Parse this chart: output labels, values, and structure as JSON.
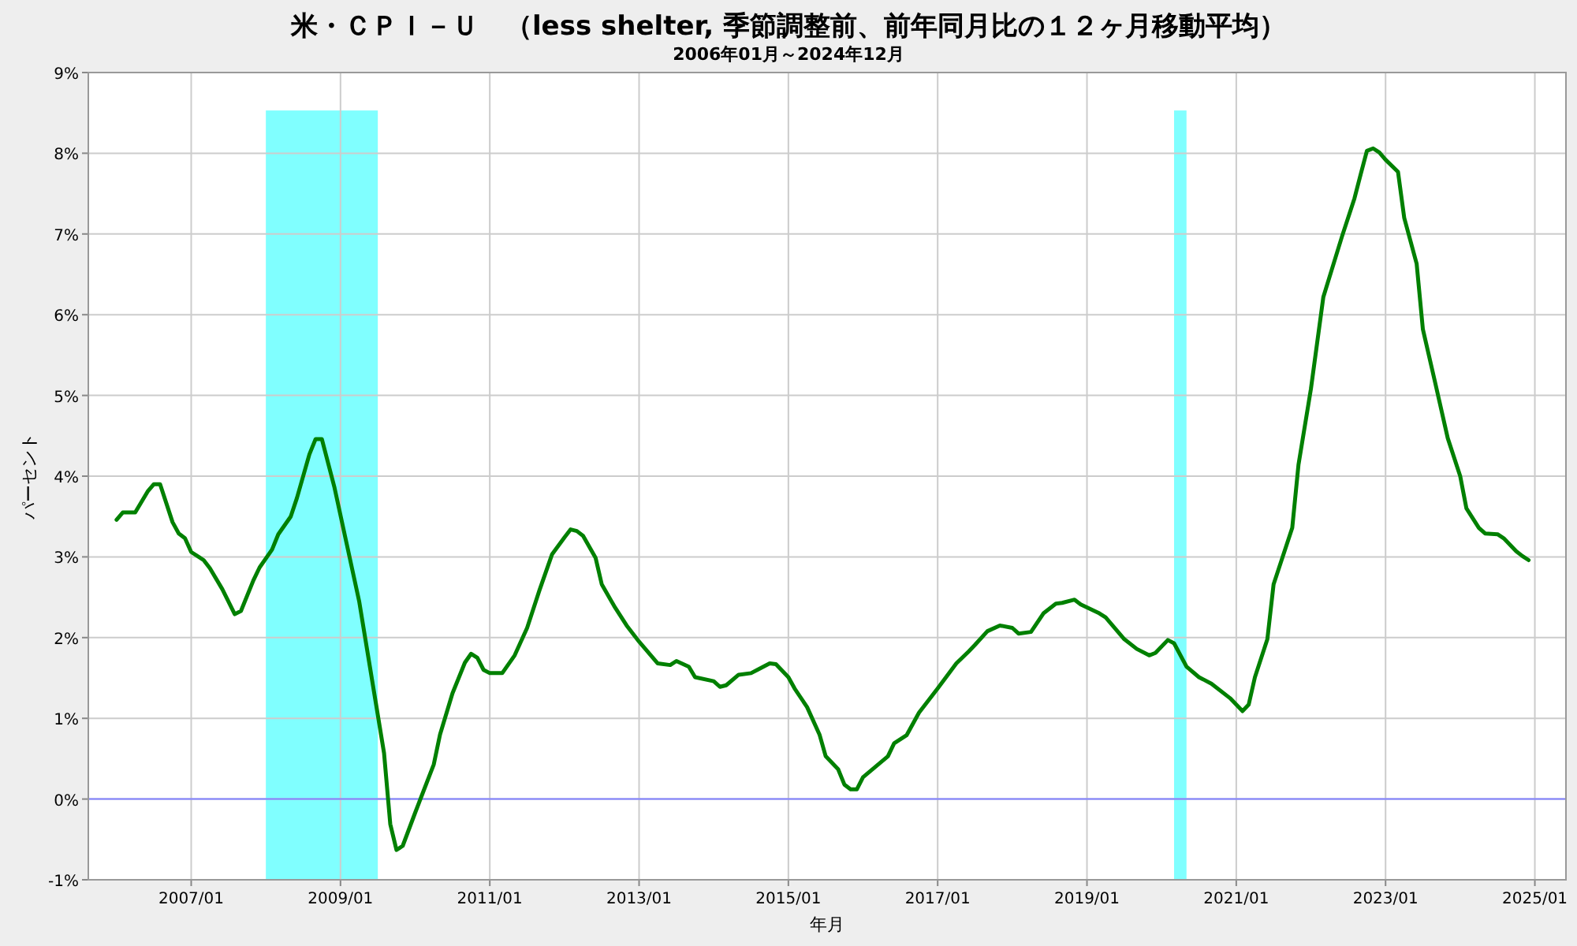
{
  "chart_data": {
    "type": "line",
    "title": "米・ＣＰＩ－Ｕ　（less shelter, 季節調整前、前年同月比の１２ヶ月移動平均）",
    "subtitle": "2006年01月～2024年12月",
    "xlabel": "年月",
    "ylabel": "パーセント",
    "xlim": [
      "2005-08-15",
      "2025-06"
    ],
    "xticks": [
      {
        "value": "2007-01",
        "label": "2007/01"
      },
      {
        "value": "2009-01",
        "label": "2009/01"
      },
      {
        "value": "2011-01",
        "label": "2011/01"
      },
      {
        "value": "2013-01",
        "label": "2013/01"
      },
      {
        "value": "2015-01",
        "label": "2015/01"
      },
      {
        "value": "2017-01",
        "label": "2017/01"
      },
      {
        "value": "2019-01",
        "label": "2019/01"
      },
      {
        "value": "2021-01",
        "label": "2021/01"
      },
      {
        "value": "2023-01",
        "label": "2023/01"
      },
      {
        "value": "2025-01",
        "label": "2025/01"
      }
    ],
    "ylim": [
      -1,
      9
    ],
    "yticks": [
      {
        "value": -1,
        "label": "-1%"
      },
      {
        "value": 0,
        "label": "0%"
      },
      {
        "value": 1,
        "label": "1%"
      },
      {
        "value": 2,
        "label": "2%"
      },
      {
        "value": 3,
        "label": "3%"
      },
      {
        "value": 4,
        "label": "4%"
      },
      {
        "value": 5,
        "label": "5%"
      },
      {
        "value": 6,
        "label": "6%"
      },
      {
        "value": 7,
        "label": "7%"
      },
      {
        "value": 8,
        "label": "8%"
      },
      {
        "value": 9,
        "label": "9%"
      }
    ],
    "grid": true,
    "line_style": "solid",
    "ref_lines": [
      {
        "axis": "y",
        "value": 0,
        "color": "#8080ff"
      }
    ],
    "bands": [
      {
        "axis": "x",
        "from": "2008-01",
        "to": "2009-07",
        "color": "#80ffff"
      },
      {
        "axis": "x",
        "from": "2020-03",
        "to": "2020-05",
        "color": "#80ffff"
      }
    ],
    "series": [
      {
        "color": "#008000",
        "x": [
          "2006-01",
          "2006-02",
          "2006-04",
          "2006-06",
          "2006-07",
          "2006-08",
          "2006-10",
          "2006-11",
          "2006-12",
          "2007-01",
          "2007-03",
          "2007-04",
          "2007-06",
          "2007-08",
          "2007-09",
          "2007-11",
          "2007-12",
          "2008-02",
          "2008-03",
          "2008-05",
          "2008-06",
          "2008-08",
          "2008-09",
          "2008-10",
          "2008-12",
          "2009-02",
          "2009-04",
          "2009-06",
          "2009-08",
          "2009-09",
          "2009-10",
          "2009-11",
          "2010-01",
          "2010-02",
          "2010-04",
          "2010-05",
          "2010-07",
          "2010-09",
          "2010-10",
          "2010-11",
          "2010-12",
          "2011-01",
          "2011-03",
          "2011-05",
          "2011-07",
          "2011-09",
          "2011-11",
          "2012-01",
          "2012-02",
          "2012-03",
          "2012-04",
          "2012-06",
          "2012-07",
          "2012-09",
          "2012-11",
          "2013-01",
          "2013-02",
          "2013-04",
          "2013-06",
          "2013-07",
          "2013-09",
          "2013-10",
          "2014-01",
          "2014-02",
          "2014-03",
          "2014-05",
          "2014-07",
          "2014-08",
          "2014-10",
          "2014-11",
          "2015-01",
          "2015-02",
          "2015-04",
          "2015-06",
          "2015-07",
          "2015-09",
          "2015-10",
          "2015-11",
          "2015-12",
          "2016-01",
          "2016-03",
          "2016-05",
          "2016-06",
          "2016-08",
          "2016-10",
          "2017-01",
          "2017-04",
          "2017-06",
          "2017-07",
          "2017-09",
          "2017-11",
          "2018-01",
          "2018-02",
          "2018-04",
          "2018-06",
          "2018-08",
          "2018-09",
          "2018-11",
          "2018-12",
          "2019-03",
          "2019-04",
          "2019-07",
          "2019-09",
          "2019-11",
          "2019-12",
          "2020-02",
          "2020-03",
          "2020-05",
          "2020-07",
          "2020-09",
          "2020-12",
          "2021-02",
          "2021-03",
          "2021-04",
          "2021-06",
          "2021-07",
          "2021-10",
          "2021-11",
          "2022-01",
          "2022-03",
          "2022-06",
          "2022-08",
          "2022-09",
          "2022-10",
          "2022-11",
          "2022-12",
          "2023-01",
          "2023-03",
          "2023-04",
          "2023-06",
          "2023-07",
          "2023-09",
          "2023-11",
          "2024-01",
          "2024-02",
          "2024-04",
          "2024-05",
          "2024-07",
          "2024-08",
          "2024-10",
          "2024-11",
          "2024-12"
        ],
        "values": [
          3.46,
          3.55,
          3.55,
          3.81,
          3.9,
          3.9,
          3.43,
          3.29,
          3.23,
          3.06,
          2.96,
          2.86,
          2.6,
          2.29,
          2.33,
          2.71,
          2.87,
          3.09,
          3.28,
          3.5,
          3.73,
          4.27,
          4.46,
          4.46,
          3.87,
          3.16,
          2.45,
          1.51,
          0.57,
          -0.31,
          -0.63,
          -0.58,
          -0.17,
          0.03,
          0.43,
          0.8,
          1.31,
          1.69,
          1.8,
          1.75,
          1.6,
          1.56,
          1.56,
          1.78,
          2.12,
          2.59,
          3.03,
          3.24,
          3.34,
          3.32,
          3.26,
          2.99,
          2.66,
          2.39,
          2.15,
          1.95,
          1.86,
          1.68,
          1.66,
          1.71,
          1.64,
          1.51,
          1.46,
          1.39,
          1.41,
          1.54,
          1.56,
          1.6,
          1.68,
          1.67,
          1.51,
          1.37,
          1.14,
          0.8,
          0.53,
          0.37,
          0.18,
          0.12,
          0.12,
          0.27,
          0.4,
          0.53,
          0.69,
          0.79,
          1.07,
          1.37,
          1.68,
          1.83,
          1.91,
          2.08,
          2.15,
          2.12,
          2.05,
          2.07,
          2.3,
          2.42,
          2.43,
          2.47,
          2.41,
          2.3,
          2.25,
          1.98,
          1.86,
          1.78,
          1.81,
          1.97,
          1.93,
          1.64,
          1.51,
          1.43,
          1.25,
          1.09,
          1.17,
          1.51,
          1.98,
          2.66,
          3.36,
          4.14,
          5.08,
          6.22,
          6.97,
          7.44,
          7.74,
          8.03,
          8.06,
          8.01,
          7.92,
          7.77,
          7.2,
          6.63,
          5.82,
          5.15,
          4.47,
          4.0,
          3.6,
          3.36,
          3.29,
          3.28,
          3.23,
          3.07,
          3.01,
          2.96
        ]
      }
    ]
  }
}
